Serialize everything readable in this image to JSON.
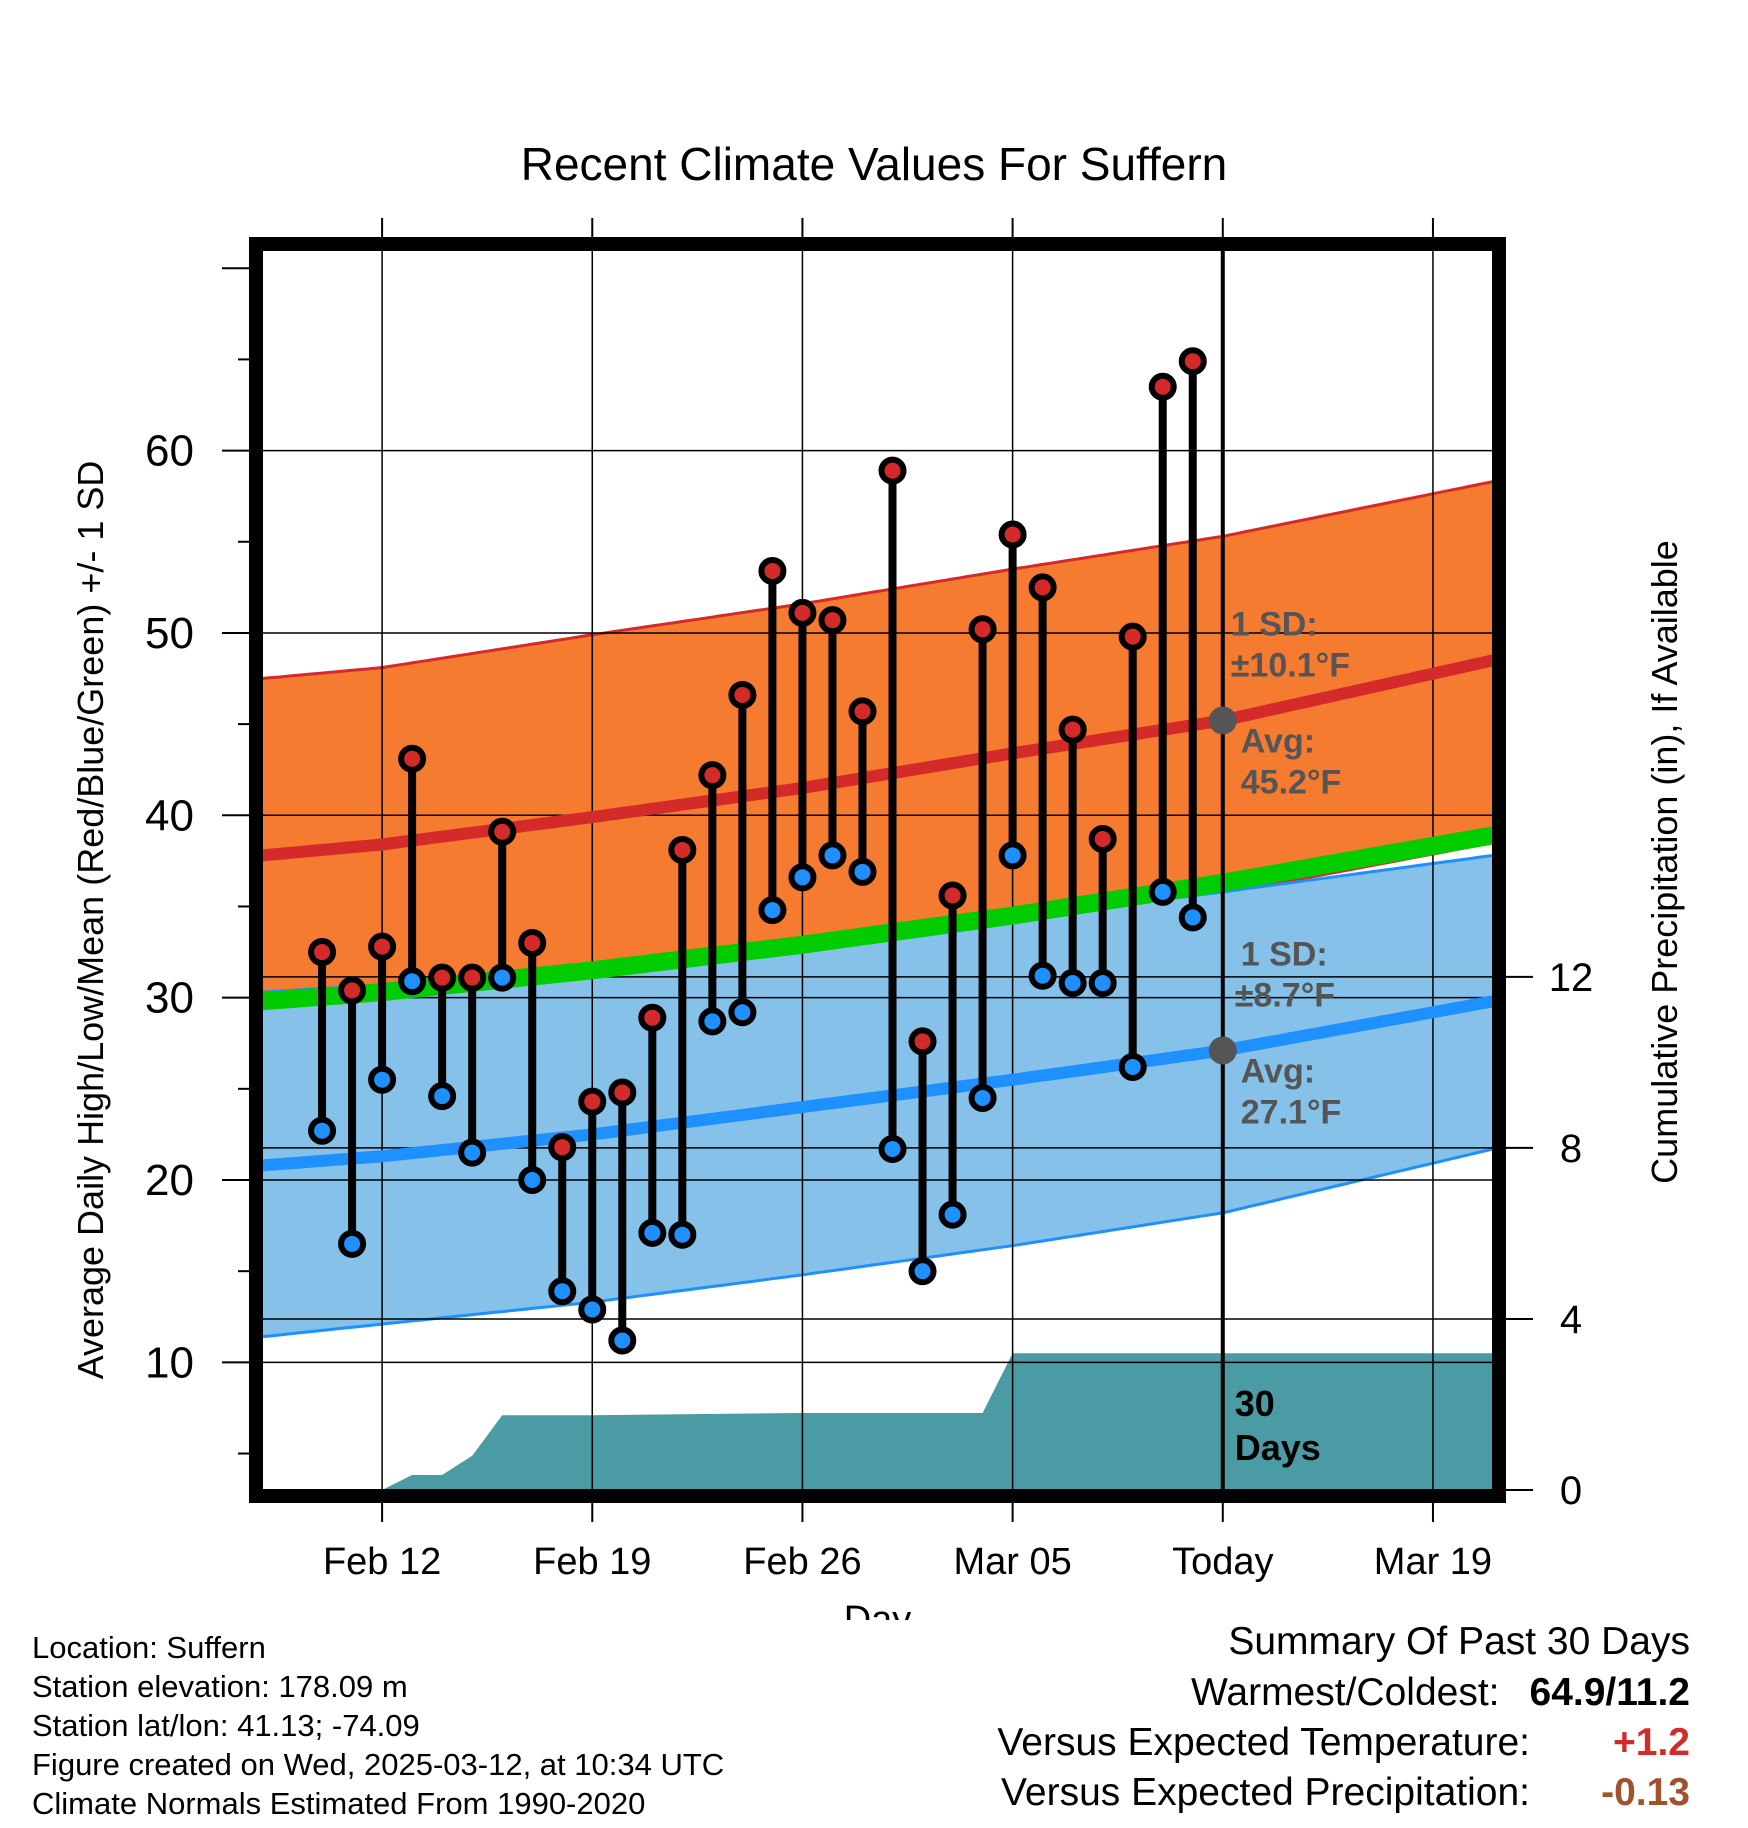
{
  "title": "Recent Climate Values For Suffern",
  "footer": {
    "location": "Location: Suffern",
    "elevation": "Station elevation: 178.09 m",
    "latlon": "Station lat/lon: 41.13; -74.09",
    "created": "Figure created on Wed, 2025-03-12, at 10:34 UTC",
    "normals": "Climate Normals Estimated From 1990-2020"
  },
  "summary": {
    "heading": "Summary Of Past 30 Days",
    "warmest_coldest_label": "Warmest/Coldest:",
    "warmest_coldest_value": "64.9/11.2",
    "temp_label": "Versus Expected Temperature:",
    "temp_value": "+1.2",
    "temp_color": "#d42a2a",
    "precip_label": "Versus Expected Precipitation:",
    "precip_value": "-0.13",
    "precip_color": "#a0522d"
  },
  "chart_data": {
    "type": "line",
    "title": "Recent Climate Values For Suffern",
    "xlabel": "Day",
    "ylabel": "Average Daily High/Low/Mean (Red/Blue/Green) +/- 1 SD",
    "y2label": "Cumulative Precipitation (in), If Available",
    "xlim": [
      "2025-02-08",
      "2025-03-21"
    ],
    "ylim": [
      3,
      71
    ],
    "y2lim": [
      0,
      29
    ],
    "x_ticks": [
      {
        "date": "2025-02-12",
        "label": "Feb 12"
      },
      {
        "date": "2025-02-19",
        "label": "Feb 19"
      },
      {
        "date": "2025-02-26",
        "label": "Feb 26"
      },
      {
        "date": "2025-03-05",
        "label": "Mar 05"
      },
      {
        "date": "2025-03-12",
        "label": "Today"
      },
      {
        "date": "2025-03-19",
        "label": "Mar 19"
      }
    ],
    "y_ticks": [
      10,
      20,
      30,
      40,
      50,
      60
    ],
    "y2_ticks": [
      0,
      4,
      8,
      12
    ],
    "grid": true,
    "today": "2025-03-12",
    "today_label": "30 Days",
    "colors": {
      "high_band": "#f47b30",
      "high_line": "#d42a2a",
      "low_band": "#85c1e9",
      "low_line": "#1e90ff",
      "mean_line": "#00cc00",
      "precip": "#4a9ba4",
      "high_dot": "#d42a2a",
      "low_dot": "#1e90ff",
      "today_marker": "#555555",
      "annotation": "#555555"
    },
    "normal_high": {
      "dates": [
        "2025-02-08",
        "2025-02-12",
        "2025-02-19",
        "2025-02-26",
        "2025-03-05",
        "2025-03-12",
        "2025-03-21"
      ],
      "mean": [
        37.8,
        38.4,
        39.9,
        41.5,
        43.4,
        45.2,
        48.5
      ],
      "upper": [
        47.5,
        48.1,
        49.9,
        51.6,
        53.5,
        55.3,
        58.3
      ],
      "lower": [
        28.6,
        29.3,
        30.7,
        32.3,
        34.0,
        35.7,
        38.5
      ]
    },
    "normal_low": {
      "dates": [
        "2025-02-08",
        "2025-02-12",
        "2025-02-19",
        "2025-02-26",
        "2025-03-05",
        "2025-03-12",
        "2025-03-21"
      ],
      "mean": [
        20.8,
        21.3,
        22.5,
        24.0,
        25.5,
        27.1,
        29.8
      ],
      "upper": [
        30.3,
        30.7,
        31.7,
        32.8,
        34.3,
        35.8,
        37.8
      ],
      "lower": [
        11.4,
        12.1,
        13.3,
        14.8,
        16.4,
        18.2,
        21.7
      ]
    },
    "normal_mean": {
      "dates": [
        "2025-02-08",
        "2025-02-12",
        "2025-02-19",
        "2025-02-26",
        "2025-03-05",
        "2025-03-12",
        "2025-03-21"
      ],
      "values": [
        29.8,
        30.3,
        31.5,
        32.9,
        34.5,
        36.3,
        38.9
      ]
    },
    "annotations": {
      "high_sd": "1 SD:",
      "high_sd_value": "±10.1°F",
      "high_avg": "Avg:",
      "high_avg_value": "45.2°F",
      "low_sd": "1 SD:",
      "low_sd_value": "±8.7°F",
      "low_avg": "Avg:",
      "low_avg_value": "27.1°F"
    },
    "daily": {
      "dates": [
        "2025-02-10",
        "2025-02-11",
        "2025-02-12",
        "2025-02-13",
        "2025-02-14",
        "2025-02-15",
        "2025-02-16",
        "2025-02-17",
        "2025-02-18",
        "2025-02-19",
        "2025-02-20",
        "2025-02-21",
        "2025-02-22",
        "2025-02-23",
        "2025-02-24",
        "2025-02-25",
        "2025-02-26",
        "2025-02-27",
        "2025-02-28",
        "2025-03-01",
        "2025-03-02",
        "2025-03-03",
        "2025-03-04",
        "2025-03-05",
        "2025-03-06",
        "2025-03-07",
        "2025-03-08",
        "2025-03-09",
        "2025-03-10",
        "2025-03-11"
      ],
      "high": [
        32.5,
        30.4,
        32.8,
        43.1,
        31.1,
        31.1,
        39.1,
        33.0,
        21.8,
        24.3,
        24.8,
        28.9,
        38.1,
        42.2,
        46.6,
        53.4,
        51.1,
        50.7,
        45.7,
        58.9,
        27.6,
        35.6,
        50.2,
        55.4,
        52.5,
        44.7,
        38.7,
        49.8,
        63.5,
        64.9
      ],
      "low": [
        22.7,
        16.5,
        25.5,
        30.9,
        24.6,
        21.5,
        31.1,
        20.0,
        13.9,
        12.9,
        11.2,
        17.1,
        17.0,
        28.7,
        29.2,
        34.8,
        36.6,
        37.8,
        36.9,
        21.7,
        15.0,
        18.1,
        24.5,
        37.8,
        31.2,
        30.8,
        30.8,
        26.2,
        35.8,
        34.4
      ]
    },
    "precip_cumulative": {
      "dates": [
        "2025-02-08",
        "2025-02-10",
        "2025-02-11",
        "2025-02-12",
        "2025-02-13",
        "2025-02-14",
        "2025-02-15",
        "2025-02-16",
        "2025-02-17",
        "2025-02-18",
        "2025-02-19",
        "2025-02-26",
        "2025-03-04",
        "2025-03-05",
        "2025-03-12",
        "2025-03-21"
      ],
      "values": [
        0.0,
        0.0,
        0.0,
        0.0,
        0.35,
        0.35,
        0.8,
        1.75,
        1.75,
        1.75,
        1.75,
        1.8,
        1.8,
        3.2,
        3.2,
        3.2
      ]
    }
  }
}
